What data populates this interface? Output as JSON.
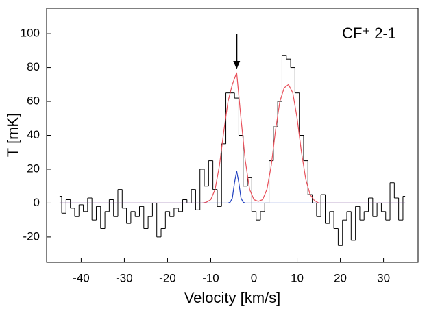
{
  "chart_data": {
    "type": "step",
    "xlabel": "Velocity [km/s]",
    "ylabel": "T [mK]",
    "annotation": {
      "text": "CF⁺ 2-1"
    },
    "arrow": {
      "x": -4,
      "y_from": 100,
      "y_to": 79
    },
    "xlim": [
      -48,
      38
    ],
    "ylim": [
      -35,
      115
    ],
    "xticks": [
      -40,
      -30,
      -20,
      -10,
      0,
      10,
      20,
      30
    ],
    "yticks": [
      -20,
      0,
      20,
      40,
      60,
      80,
      100
    ],
    "series": [
      {
        "color": "#000000",
        "style": "step",
        "x": [
          -45,
          -44,
          -43,
          -42,
          -41,
          -40,
          -39,
          -38,
          -37,
          -36,
          -35,
          -34,
          -33,
          -32,
          -31,
          -30,
          -29,
          -28,
          -27,
          -26,
          -25,
          -24,
          -23,
          -22,
          -21,
          -20,
          -19,
          -18,
          -17,
          -16,
          -15,
          -14,
          -13,
          -12,
          -11,
          -10,
          -9,
          -8,
          -7,
          -6,
          -5,
          -4,
          -3,
          -2,
          -1,
          0,
          1,
          2,
          3,
          4,
          5,
          6,
          7,
          8,
          9,
          10,
          11,
          12,
          13,
          14,
          15,
          16,
          17,
          18,
          19,
          20,
          21,
          22,
          23,
          24,
          25,
          26,
          27,
          28,
          29,
          30,
          31,
          32,
          33,
          34,
          35
        ],
        "values": [
          4,
          -6,
          2,
          -3,
          -8,
          -1,
          -5,
          3,
          -10,
          -2,
          -15,
          -5,
          2,
          -8,
          8,
          -3,
          -12,
          -5,
          -8,
          -2,
          -15,
          -8,
          0,
          -20,
          -15,
          -5,
          -8,
          -3,
          -5,
          2,
          0,
          8,
          -4,
          20,
          10,
          25,
          8,
          -2,
          35,
          65,
          65,
          62,
          40,
          10,
          15,
          -5,
          -10,
          -5,
          0,
          25,
          45,
          60,
          87,
          85,
          80,
          65,
          40,
          25,
          5,
          0,
          -8,
          5,
          -12,
          -5,
          -15,
          -25,
          -10,
          -5,
          -22,
          -2,
          -10,
          -5,
          3,
          -8,
          0,
          -5,
          -10,
          12,
          3,
          -10,
          4
        ]
      },
      {
        "color": "#e8505a",
        "style": "line",
        "x": [
          -45,
          -12,
          -11,
          -10,
          -9,
          -8,
          -7,
          -6,
          -5,
          -4,
          -3,
          -2,
          -1,
          0,
          1,
          2,
          3,
          4,
          5,
          6,
          7,
          8,
          9,
          10,
          11,
          12,
          13,
          14,
          15,
          35
        ],
        "values": [
          0,
          0,
          0.5,
          2,
          8,
          22,
          42,
          60,
          70,
          77,
          50,
          25,
          8,
          2,
          1,
          2,
          8,
          22,
          43,
          60,
          68,
          70,
          65,
          50,
          30,
          14,
          5,
          1.5,
          0,
          0
        ]
      },
      {
        "color": "#2040c0",
        "style": "line",
        "x": [
          -45,
          -6,
          -5.5,
          -5,
          -4.5,
          -4,
          -3.5,
          -3,
          -2.5,
          -2,
          35
        ],
        "values": [
          0,
          0,
          0.5,
          3,
          12,
          19,
          12,
          3,
          0.5,
          0,
          0
        ]
      }
    ]
  }
}
